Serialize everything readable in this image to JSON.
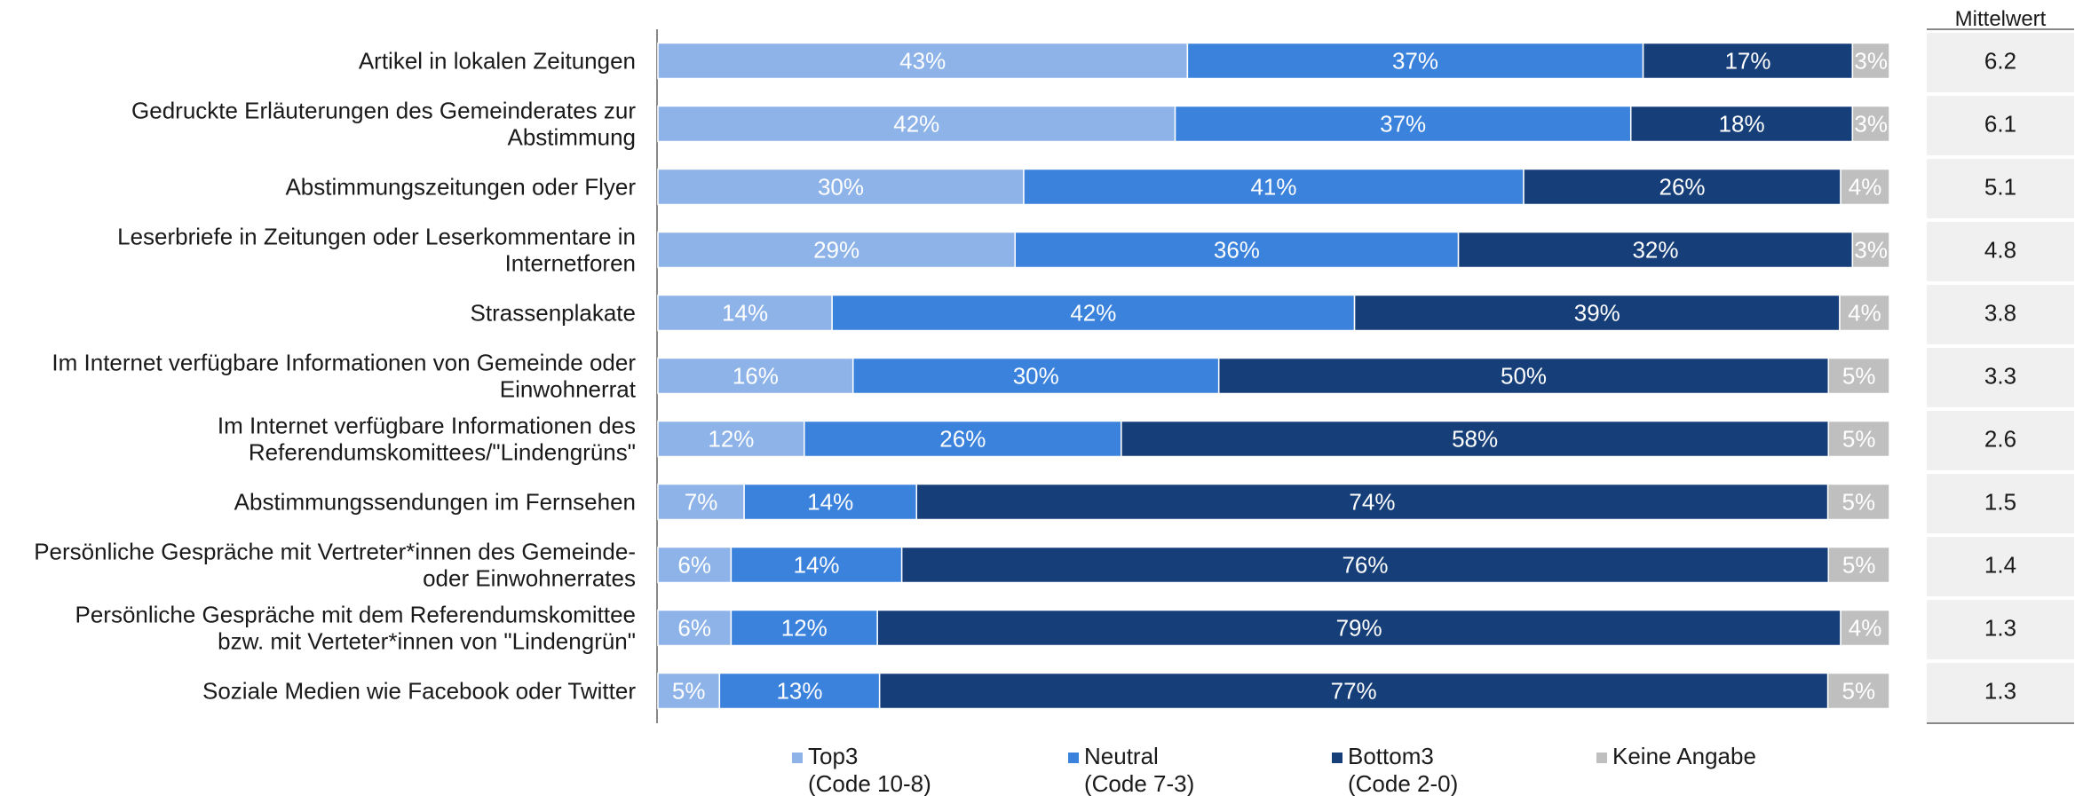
{
  "chart_data": {
    "type": "bar",
    "orientation": "horizontal",
    "stacked": true,
    "unit": "%",
    "categories": [
      [
        "Artikel in lokalen Zeitungen"
      ],
      [
        "Gedruckte Erläuterungen des Gemeinderates zur",
        "Abstimmung"
      ],
      [
        "Abstimmungszeitungen oder Flyer"
      ],
      [
        "Leserbriefe in Zeitungen oder Leserkommentare in",
        "Internetforen"
      ],
      [
        "Strassenplakate"
      ],
      [
        "Im Internet verfügbare Informationen von Gemeinde oder",
        "Einwohnerrat"
      ],
      [
        "Im Internet verfügbare Informationen des",
        "Referendumskomittees/\"Lindengrüns\""
      ],
      [
        "Abstimmungssendungen im Fernsehen"
      ],
      [
        "Persönliche Gespräche mit Vertreter*innen des Gemeinde-",
        "oder Einwohnerrates"
      ],
      [
        "Persönliche Gespräche mit dem Referendumskomittee",
        "bzw. mit Verteter*innen von \"Lindengrün\""
      ],
      [
        "Soziale Medien wie Facebook oder Twitter"
      ]
    ],
    "series": [
      {
        "name": "Top3",
        "code": "(Code 10-8)",
        "color": "#8db3e8",
        "values": [
          43,
          42,
          30,
          29,
          14,
          16,
          12,
          7,
          6,
          6,
          5
        ]
      },
      {
        "name": "Neutral",
        "code": "(Code 7-3)",
        "color": "#3a82dc",
        "values": [
          37,
          37,
          41,
          36,
          42,
          30,
          26,
          14,
          14,
          12,
          13
        ]
      },
      {
        "name": "Bottom3",
        "code": "(Code 2-0)",
        "color": "#163f7a",
        "values": [
          17,
          18,
          26,
          32,
          39,
          50,
          58,
          74,
          76,
          79,
          77
        ]
      },
      {
        "name": "Keine Angabe",
        "code": "",
        "color": "#bfbfbf",
        "values": [
          3,
          3,
          4,
          3,
          4,
          5,
          5,
          5,
          5,
          4,
          5
        ]
      }
    ],
    "mean_header": "Mittelwert",
    "means": [
      "6.2",
      "6.1",
      "5.1",
      "4.8",
      "3.8",
      "3.3",
      "2.6",
      "1.5",
      "1.4",
      "1.3",
      "1.3"
    ],
    "legend_position": "bottom",
    "grid": false
  }
}
